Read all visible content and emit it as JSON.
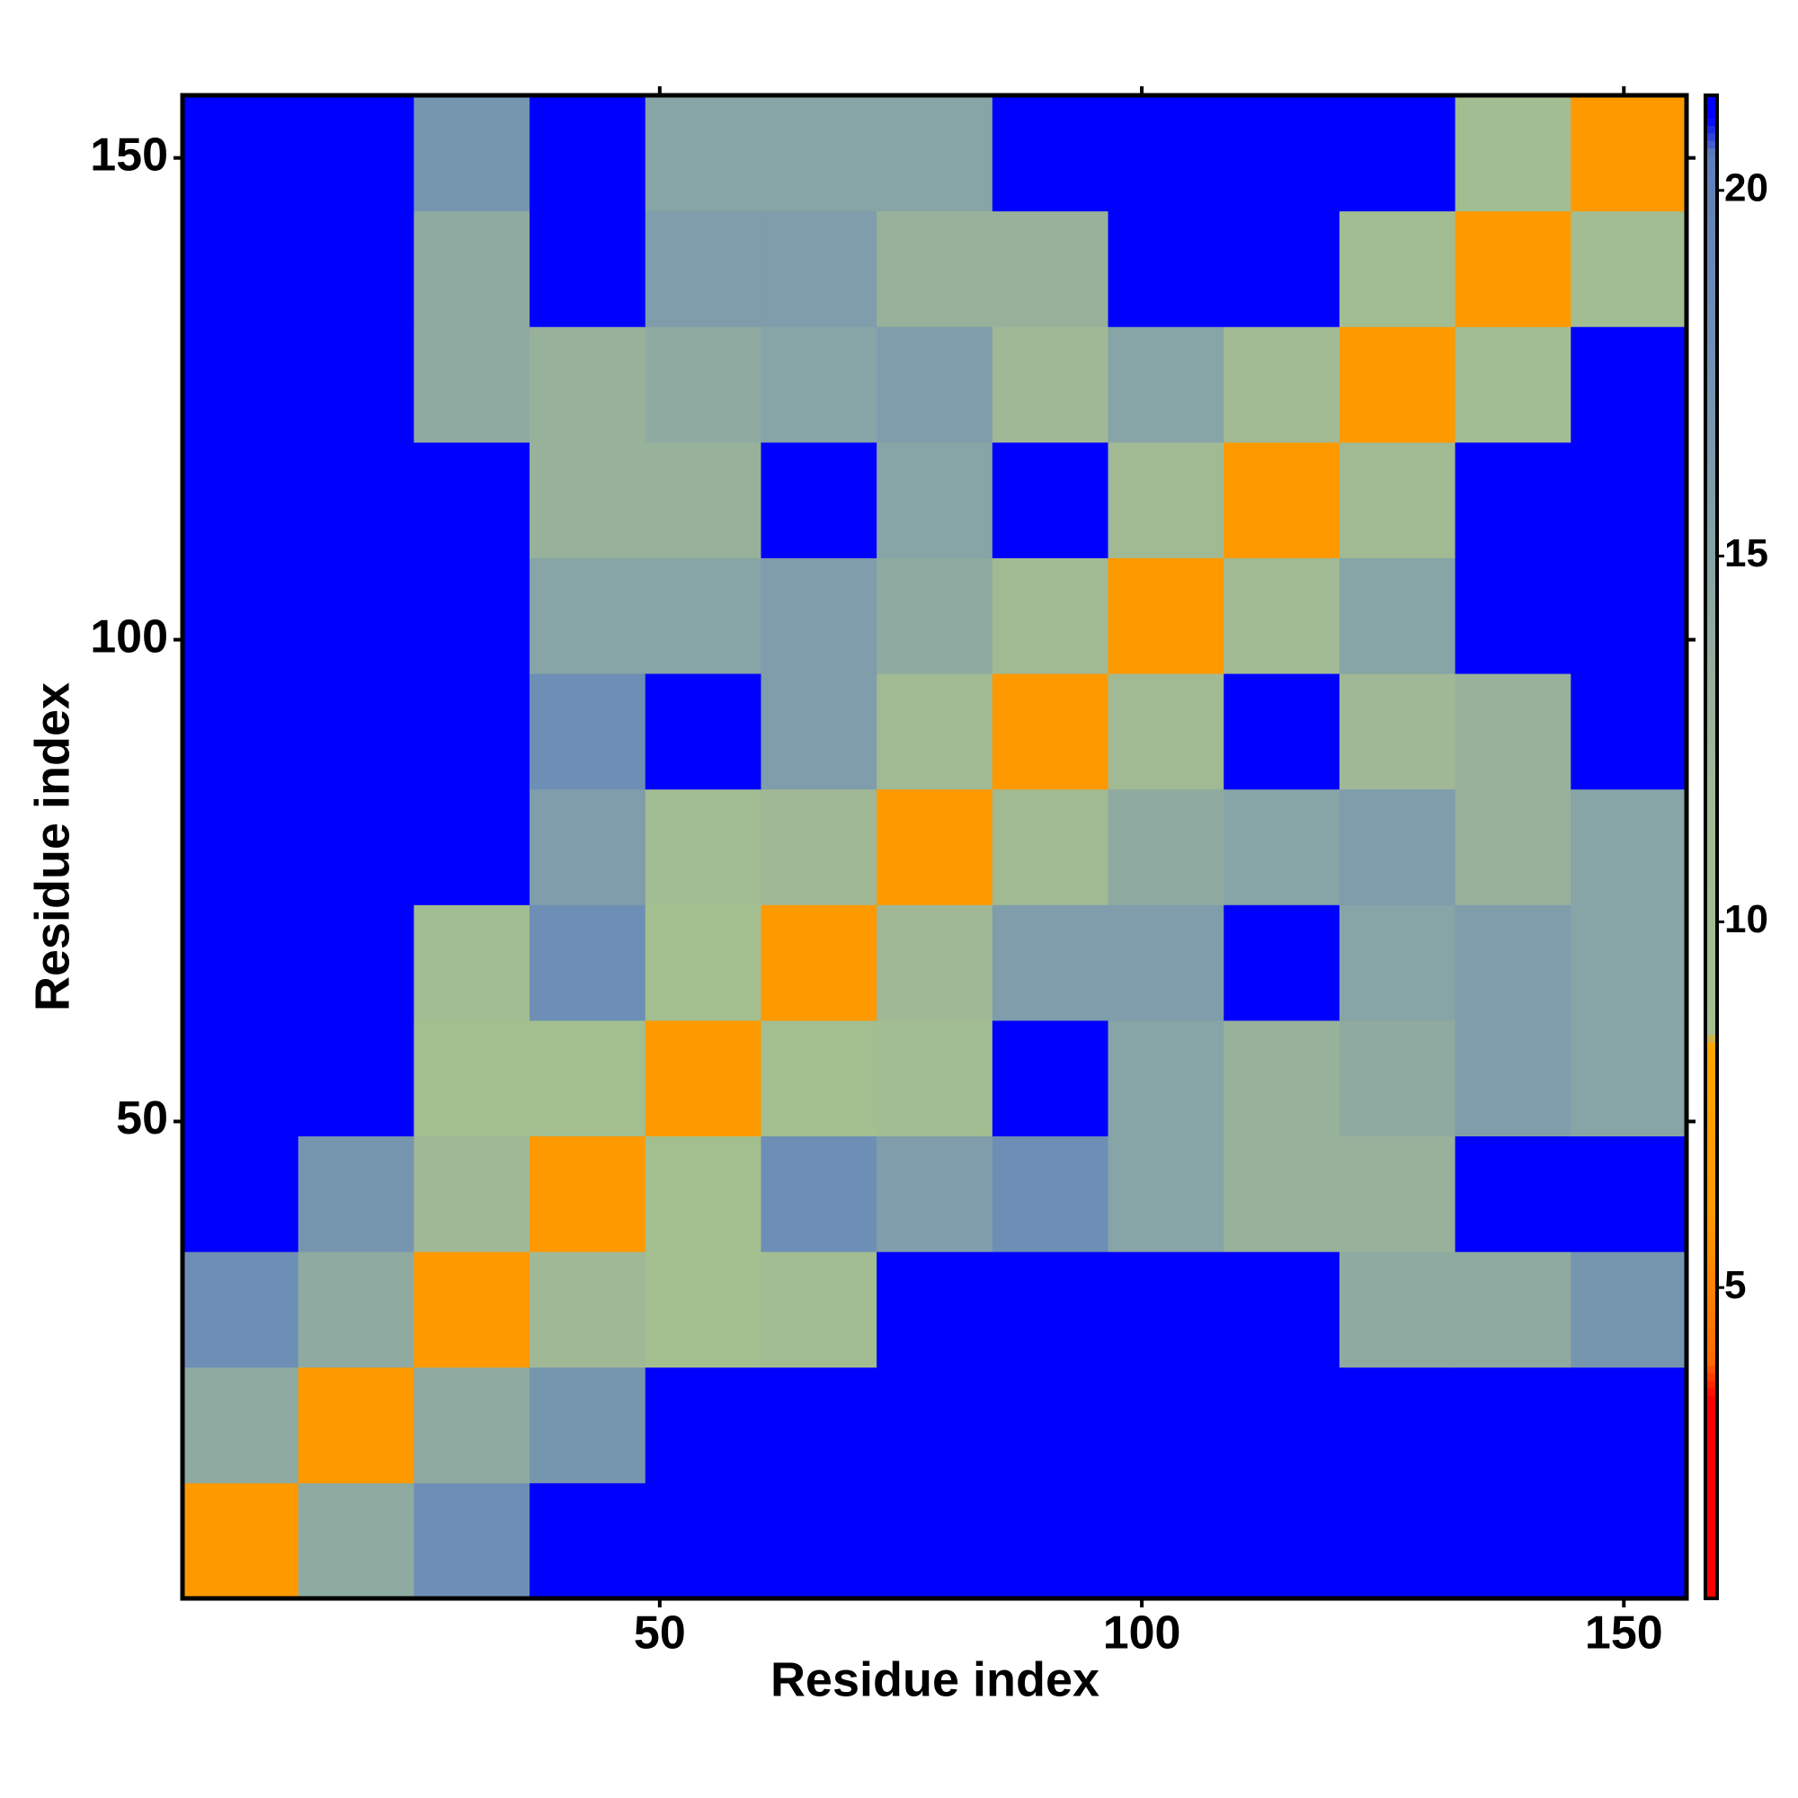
{
  "chart_data": {
    "type": "heatmap",
    "xlabel": "Residue index",
    "ylabel": "Residue index",
    "xlim": [
      0.5,
      156.5
    ],
    "ylim": [
      0.5,
      156.5
    ],
    "xticks": [
      50,
      100,
      150
    ],
    "yticks": [
      50,
      100,
      150
    ],
    "xbins": [
      0.5,
      12.5,
      24.5,
      36.5,
      48.5,
      60.5,
      72.5,
      84.5,
      96.5,
      108.5,
      120.5,
      132.5,
      144.5,
      156.5
    ],
    "ybins": [
      0.5,
      12.5,
      24.5,
      36.5,
      48.5,
      60.5,
      72.5,
      84.5,
      96.5,
      108.5,
      120.5,
      132.5,
      144.5,
      156.5
    ],
    "z": [
      [
        6,
        14,
        18,
        21,
        21,
        21,
        21,
        21,
        21,
        21,
        21,
        21,
        21
      ],
      [
        14,
        6,
        14,
        17,
        21,
        21,
        21,
        21,
        21,
        21,
        21,
        21,
        21
      ],
      [
        18,
        14,
        6,
        12,
        9,
        10,
        21,
        21,
        21,
        21,
        14,
        14,
        17
      ],
      [
        21,
        17,
        12,
        6,
        9,
        18,
        16,
        18,
        15,
        13,
        13,
        21,
        21
      ],
      [
        21,
        21,
        9,
        9,
        6,
        9,
        10,
        21,
        15,
        13,
        14,
        16,
        15
      ],
      [
        21,
        21,
        10,
        18,
        9,
        6,
        12,
        16,
        16,
        21,
        15,
        16,
        15
      ],
      [
        21,
        21,
        21,
        16,
        10,
        12,
        6,
        11,
        14,
        15,
        16,
        13,
        15
      ],
      [
        21,
        21,
        21,
        18,
        21,
        16,
        11,
        6,
        11,
        21,
        12,
        13,
        21
      ],
      [
        21,
        21,
        21,
        15,
        15,
        16,
        14,
        11,
        6,
        11,
        15,
        21,
        21
      ],
      [
        21,
        21,
        21,
        13,
        13,
        21,
        15,
        21,
        11,
        6,
        11,
        21,
        21
      ],
      [
        21,
        21,
        14,
        13,
        14,
        15,
        16,
        12,
        15,
        11,
        6,
        10,
        21
      ],
      [
        21,
        21,
        14,
        21,
        16,
        16,
        13,
        13,
        21,
        21,
        10,
        6,
        10
      ],
      [
        21,
        21,
        17,
        21,
        15,
        15,
        15,
        21,
        21,
        21,
        21,
        10,
        6
      ]
    ],
    "zlim": [
      0.75,
      21.3
    ],
    "zticks": [
      5,
      10,
      15,
      20
    ],
    "colorscale": [
      [
        0.75,
        "#ff0000"
      ],
      [
        3.5,
        "#ff0000"
      ],
      [
        4,
        "#ff6a00"
      ],
      [
        6,
        "#ff9900"
      ],
      [
        8.3,
        "#ffa500"
      ],
      [
        8.5,
        "#a4c08e"
      ],
      [
        12,
        "#a0b896"
      ],
      [
        18,
        "#6e8fb5"
      ],
      [
        20.5,
        "#5f7fb8"
      ],
      [
        21,
        "#0000ff"
      ],
      [
        21.3,
        "#0000ff"
      ]
    ]
  }
}
